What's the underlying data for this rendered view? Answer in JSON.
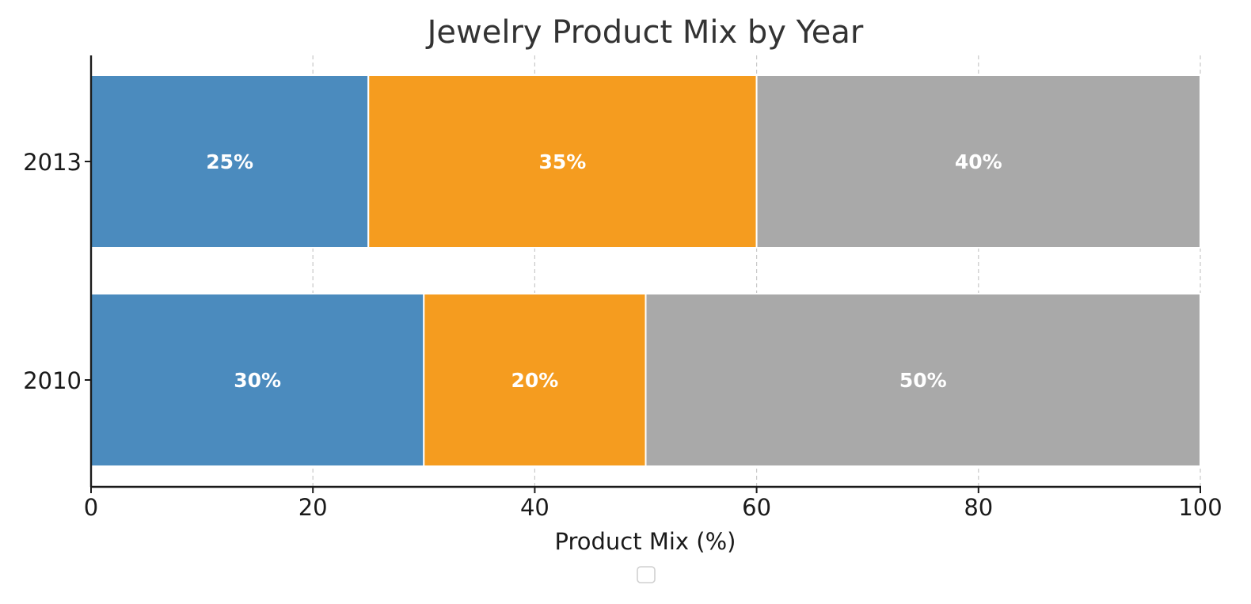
{
  "chart_data": {
    "type": "bar",
    "orientation": "horizontal",
    "stacked": true,
    "title": "Jewelry Product Mix by Year",
    "xlabel": "Product Mix (%)",
    "ylabel": "",
    "categories": [
      "2010",
      "2013"
    ],
    "xlim": [
      0,
      100
    ],
    "xticks": [
      0,
      20,
      40,
      60,
      80,
      100
    ],
    "grid": true,
    "legend": {
      "placement": "bottom-center",
      "entries": []
    },
    "series": [
      {
        "values": [
          30,
          25
        ],
        "labels": [
          "30%",
          "25%"
        ],
        "color": "#4b8bbe"
      },
      {
        "values": [
          20,
          35
        ],
        "labels": [
          "20%",
          "35%"
        ],
        "color": "#f59c1f"
      },
      {
        "values": [
          50,
          40
        ],
        "labels": [
          "50%",
          "40%"
        ],
        "color": "#a9a9a9"
      }
    ]
  }
}
